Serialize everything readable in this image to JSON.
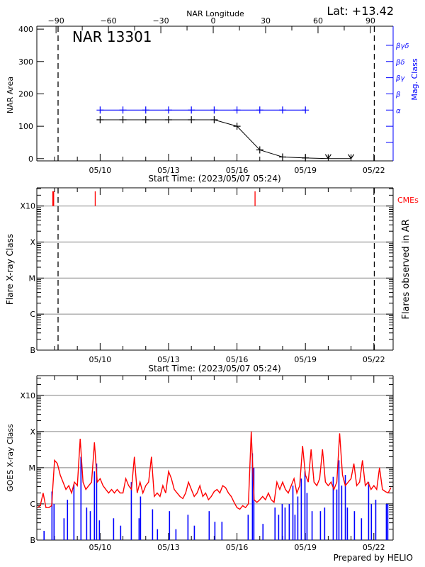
{
  "header": {
    "lat_label": "Lat: +13.42",
    "region_title": "NAR 13301",
    "top_axis_title": "NAR Longitude",
    "footer": "Prepared by HELIO"
  },
  "chart_data": [
    {
      "type": "line",
      "panel": "nar-area",
      "ylabel": "NAR Area",
      "y2label": "Mag. Class",
      "xlabel": "Start Time: (2023/05/07 05:24)",
      "xlim": [
        "2023-05-07T05:24",
        "2023-05-22T20:17"
      ],
      "ylim": [
        -7,
        409
      ],
      "y_ticks": [
        0,
        100,
        200,
        300,
        400
      ],
      "top_axis": {
        "title": "NAR Longitude",
        "range": [
          -101,
          103
        ],
        "ticks": [
          -90,
          -60,
          -30,
          0,
          30,
          60,
          90
        ]
      },
      "x_ticks": [
        {
          "date": "2023-05-10T00:00",
          "label": "05/10"
        },
        {
          "date": "2023-05-13T00:00",
          "label": "05/13"
        },
        {
          "date": "2023-05-16T00:00",
          "label": "05/16"
        },
        {
          "date": "2023-05-19T00:00",
          "label": "05/19"
        },
        {
          "date": "2023-05-22T00:00",
          "label": "05/22"
        }
      ],
      "limb_crossings": [
        "2023-05-08T03:45",
        "2023-05-22T00:30"
      ],
      "mag_class_axis": [
        {
          "label": "",
          "value": 50
        },
        {
          "label": "",
          "value": 100
        },
        {
          "label": "α",
          "value": 150
        },
        {
          "label": "β",
          "value": 200
        },
        {
          "label": "βγ",
          "value": 250
        },
        {
          "label": "βδ",
          "value": 300
        },
        {
          "label": "βγδ",
          "value": 350
        }
      ],
      "area_series": {
        "color": "#000000",
        "dates": [
          "2023-05-10T00:00",
          "2023-05-11T00:00",
          "2023-05-12T00:00",
          "2023-05-13T00:00",
          "2023-05-14T00:00",
          "2023-05-15T00:00",
          "2023-05-16T00:00",
          "2023-05-17T00:00",
          "2023-05-18T00:00",
          "2023-05-19T00:00",
          "2023-05-20T00:00",
          "2023-05-21T00:00"
        ],
        "values": [
          120,
          120,
          120,
          120,
          120,
          120,
          100,
          27,
          5,
          2,
          0,
          0
        ],
        "upper_limit_markers": [
          false,
          false,
          false,
          false,
          false,
          false,
          false,
          false,
          false,
          false,
          true,
          true
        ]
      },
      "mag_class_series": {
        "color": "#0000ff",
        "dates": [
          "2023-05-10T00:00",
          "2023-05-11T00:00",
          "2023-05-12T00:00",
          "2023-05-13T00:00",
          "2023-05-14T00:00",
          "2023-05-15T00:00",
          "2023-05-16T00:00",
          "2023-05-17T00:00",
          "2023-05-18T00:00",
          "2023-05-19T00:00"
        ],
        "values": [
          "α",
          "α",
          "α",
          "α",
          "α",
          "α",
          "α",
          "α",
          "α",
          "α"
        ]
      }
    },
    {
      "type": "bar",
      "panel": "flares",
      "ylabel": "Flare X-ray Class",
      "y2label": "Flares observed in AR",
      "xlabel": "Start Time: (2023/05/07 05:24)",
      "yscale": "log",
      "ylim": [
        1e-07,
        0.0032
      ],
      "class_levels": [
        {
          "label": "B",
          "flux": 1e-07
        },
        {
          "label": "C",
          "flux": 1e-06
        },
        {
          "label": "M",
          "flux": 1e-05
        },
        {
          "label": "X",
          "flux": 0.0001
        },
        {
          "label": "X10",
          "flux": 0.001
        }
      ],
      "flares": [],
      "cme_label": "CMEs",
      "cme_color": "#ff0000",
      "cmes": [
        "2023-05-07T22:40",
        "2023-05-09T18:50",
        "2023-05-16T19:00"
      ]
    },
    {
      "type": "line",
      "panel": "goes",
      "ylabel": "GOES X-ray Class",
      "yscale": "log",
      "ylim": [
        1e-07,
        0.0035
      ],
      "grid": true,
      "long_channel": {
        "color": "#ff0000",
        "start": "2023-05-07T06:00",
        "step_hours": 3,
        "values": [
          7.9e-07,
          8.9e-07,
          2e-06,
          7.9e-07,
          7.9e-07,
          8.9e-07,
          1.6e-05,
          1.3e-05,
          6.3e-06,
          4e-06,
          2.5e-06,
          3.2e-06,
          2e-06,
          4e-06,
          3.2e-06,
          6.3e-05,
          4e-06,
          2.5e-06,
          3.2e-06,
          4e-06,
          5e-05,
          4e-06,
          5e-06,
          3.2e-06,
          2.5e-06,
          2e-06,
          2.5e-06,
          2e-06,
          2.5e-06,
          2e-06,
          2e-06,
          5e-06,
          3.2e-06,
          2.5e-06,
          2e-05,
          2e-06,
          4e-06,
          2e-06,
          3.2e-06,
          4e-06,
          2e-05,
          1.6e-06,
          2e-06,
          1.6e-06,
          3.2e-06,
          2e-06,
          7.9e-06,
          5e-06,
          2.5e-06,
          2e-06,
          1.6e-06,
          1.4e-06,
          2e-06,
          4e-06,
          2.5e-06,
          1.6e-06,
          2e-06,
          3.2e-06,
          1.6e-06,
          2e-06,
          1.3e-06,
          1.6e-06,
          2.2e-06,
          2.5e-06,
          2e-06,
          3.2e-06,
          2.8e-06,
          2e-06,
          1.6e-06,
          1.1e-06,
          7.9e-07,
          7.1e-07,
          8.9e-07,
          7.9e-07,
          1e-06,
          0.0001,
          1.3e-06,
          1.1e-06,
          1.3e-06,
          1.6e-06,
          1.3e-06,
          2e-06,
          1.3e-06,
          1.1e-06,
          4e-06,
          2.5e-06,
          4e-06,
          2.5e-06,
          2e-06,
          3.2e-06,
          5e-06,
          2e-06,
          3.2e-06,
          4e-05,
          6.3e-06,
          4e-06,
          3.2e-05,
          4e-06,
          3.2e-06,
          5e-06,
          3.2e-05,
          4e-06,
          3.2e-06,
          4e-06,
          2.5e-06,
          4e-06,
          8.9e-05,
          6.3e-06,
          3.2e-06,
          4e-06,
          5e-06,
          1.3e-05,
          3.2e-06,
          4e-06,
          1.6e-05,
          3.2e-06,
          4e-06,
          2.5e-06,
          3.2e-06,
          2.5e-06,
          1e-05,
          2.5e-06,
          2.2e-06,
          2e-06,
          2.8e-06
        ]
      },
      "short_channel": {
        "color": "#0000ff",
        "events": [
          [
            "2023-05-07T13:00",
            1.8e-07
          ],
          [
            "2023-05-07T21:20",
            2.2e-06
          ],
          [
            "2023-05-07T23:30",
            1e-06
          ],
          [
            "2023-05-08T10:00",
            4e-07
          ],
          [
            "2023-05-08T13:40",
            1.3e-06
          ],
          [
            "2023-05-08T20:25",
            3.5e-06
          ],
          [
            "2023-05-09T03:50",
            2e-05
          ],
          [
            "2023-05-09T09:50",
            7.9e-07
          ],
          [
            "2023-05-09T13:40",
            6.3e-07
          ],
          [
            "2023-05-09T18:00",
            7.9e-06
          ],
          [
            "2023-05-09T20:20",
            1.3e-05
          ],
          [
            "2023-05-09T23:15",
            3.5e-07
          ],
          [
            "2023-05-10T14:10",
            4e-07
          ],
          [
            "2023-05-10T21:35",
            2.5e-07
          ],
          [
            "2023-05-11T08:50",
            4e-06
          ],
          [
            "2023-05-11T17:00",
            4e-07
          ],
          [
            "2023-05-11T18:30",
            1.6e-06
          ],
          [
            "2023-05-12T07:10",
            7.1e-07
          ],
          [
            "2023-05-12T12:20",
            2e-07
          ],
          [
            "2023-05-13T01:00",
            6.3e-07
          ],
          [
            "2023-05-13T07:45",
            2e-07
          ],
          [
            "2023-05-13T20:25",
            5e-07
          ],
          [
            "2023-05-14T03:10",
            2.5e-07
          ],
          [
            "2023-05-14T18:45",
            6.3e-07
          ],
          [
            "2023-05-15T00:45",
            3.2e-07
          ],
          [
            "2023-05-15T08:10",
            3.2e-07
          ],
          [
            "2023-05-16T11:45",
            5e-07
          ],
          [
            "2023-05-16T16:15",
            2.5e-05
          ],
          [
            "2023-05-16T17:45",
            1e-05
          ],
          [
            "2023-05-17T03:20",
            2.8e-07
          ],
          [
            "2023-05-17T16:00",
            7.9e-07
          ],
          [
            "2023-05-17T19:50",
            5e-07
          ],
          [
            "2023-05-17T23:35",
            1e-06
          ],
          [
            "2023-05-18T02:35",
            7.9e-07
          ],
          [
            "2023-05-18T07:00",
            1e-06
          ],
          [
            "2023-05-18T10:50",
            3.2e-06
          ],
          [
            "2023-05-18T13:00",
            5e-07
          ],
          [
            "2023-05-18T16:00",
            1.6e-06
          ],
          [
            "2023-05-18T19:40",
            5e-06
          ],
          [
            "2023-05-18T23:30",
            7.9e-06
          ],
          [
            "2023-05-19T01:40",
            2e-06
          ],
          [
            "2023-05-19T07:00",
            6.3e-07
          ],
          [
            "2023-05-19T15:50",
            6.3e-07
          ],
          [
            "2023-05-19T20:15",
            7.9e-07
          ],
          [
            "2023-05-20T05:15",
            5.6e-06
          ],
          [
            "2023-05-20T09:00",
            2.5e-06
          ],
          [
            "2023-05-20T11:15",
            1.6e-05
          ],
          [
            "2023-05-20T14:10",
            3.2e-06
          ],
          [
            "2023-05-20T18:00",
            6.3e-06
          ],
          [
            "2023-05-20T20:10",
            7.9e-07
          ],
          [
            "2023-05-21T03:35",
            6.3e-07
          ],
          [
            "2023-05-21T11:00",
            4e-07
          ],
          [
            "2023-05-21T18:30",
            4e-06
          ],
          [
            "2023-05-21T21:25",
            1e-06
          ],
          [
            "2023-05-22T02:00",
            1.3e-06
          ],
          [
            "2023-05-22T13:10",
            1e-06
          ],
          [
            "2023-05-22T14:40",
            1e-06
          ]
        ]
      }
    }
  ]
}
